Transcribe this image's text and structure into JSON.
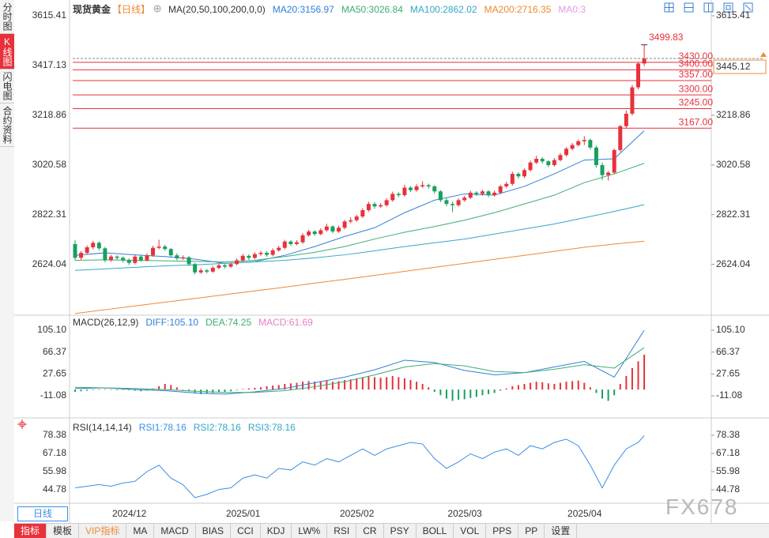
{
  "sidebar": {
    "tabs": [
      "分时图",
      "K线图",
      "闪电图",
      "合约资料"
    ]
  },
  "chart_data": [
    {
      "type": "candlestick",
      "title": "现货黄金",
      "period": "【日线】",
      "ma_label": "MA(20,50,100,200,0,0)",
      "up_color": "#e8313a",
      "down_color": "#17a05d",
      "ylim": [
        2424.3,
        3646.9
      ],
      "yticks": [
        3615.41,
        3417.13,
        3218.86,
        3020.58,
        2822.31,
        2624.04
      ],
      "categories": [
        null,
        null,
        null,
        null,
        null,
        null,
        null,
        null,
        "2024/12",
        null,
        null,
        null,
        null,
        null,
        null,
        null,
        null,
        null,
        null,
        null,
        null,
        null,
        null,
        null,
        null,
        null,
        null,
        "2025/01",
        null,
        null,
        null,
        null,
        null,
        null,
        null,
        null,
        null,
        null,
        null,
        null,
        null,
        null,
        null,
        null,
        null,
        null,
        "2025/02",
        null,
        null,
        null,
        null,
        null,
        null,
        null,
        null,
        null,
        null,
        null,
        null,
        null,
        null,
        null,
        null,
        null,
        "2025/03",
        null,
        null,
        null,
        null,
        null,
        null,
        null,
        null,
        null,
        null,
        null,
        null,
        null,
        null,
        null,
        null,
        null,
        null,
        null,
        "2025/04",
        null,
        null,
        null,
        null,
        null,
        null,
        null,
        null,
        null,
        null
      ],
      "ohlc": [
        [
          2705,
          2720,
          2640,
          2650
        ],
        [
          2650,
          2678,
          2642,
          2670
        ],
        [
          2670,
          2700,
          2662,
          2692
        ],
        [
          2692,
          2718,
          2684,
          2710
        ],
        [
          2710,
          2716,
          2680,
          2688
        ],
        [
          2688,
          2694,
          2632,
          2640
        ],
        [
          2640,
          2662,
          2634,
          2655
        ],
        [
          2655,
          2660,
          2642,
          2650
        ],
        [
          2650,
          2656,
          2632,
          2640
        ],
        [
          2640,
          2648,
          2622,
          2630
        ],
        [
          2630,
          2662,
          2624,
          2655
        ],
        [
          2655,
          2660,
          2634,
          2640
        ],
        [
          2640,
          2668,
          2636,
          2660
        ],
        [
          2660,
          2698,
          2654,
          2690
        ],
        [
          2690,
          2722,
          2684,
          2695
        ],
        [
          2695,
          2702,
          2678,
          2685
        ],
        [
          2685,
          2690,
          2652,
          2660
        ],
        [
          2660,
          2668,
          2640,
          2648
        ],
        [
          2648,
          2660,
          2642,
          2652
        ],
        [
          2652,
          2658,
          2618,
          2625
        ],
        [
          2625,
          2630,
          2584,
          2592
        ],
        [
          2592,
          2608,
          2586,
          2600
        ],
        [
          2600,
          2606,
          2588,
          2595
        ],
        [
          2595,
          2618,
          2590,
          2610
        ],
        [
          2610,
          2628,
          2604,
          2620
        ],
        [
          2620,
          2626,
          2608,
          2615
        ],
        [
          2615,
          2632,
          2610,
          2625
        ],
        [
          2625,
          2648,
          2620,
          2640
        ],
        [
          2640,
          2666,
          2634,
          2658
        ],
        [
          2658,
          2664,
          2642,
          2650
        ],
        [
          2650,
          2672,
          2644,
          2665
        ],
        [
          2665,
          2678,
          2658,
          2670
        ],
        [
          2670,
          2676,
          2654,
          2662
        ],
        [
          2662,
          2688,
          2656,
          2680
        ],
        [
          2680,
          2698,
          2674,
          2690
        ],
        [
          2690,
          2722,
          2684,
          2715
        ],
        [
          2715,
          2720,
          2698,
          2705
        ],
        [
          2705,
          2720,
          2700,
          2712
        ],
        [
          2712,
          2748,
          2706,
          2740
        ],
        [
          2740,
          2762,
          2734,
          2755
        ],
        [
          2755,
          2760,
          2738,
          2745
        ],
        [
          2745,
          2768,
          2740,
          2760
        ],
        [
          2760,
          2786,
          2754,
          2775
        ],
        [
          2775,
          2780,
          2748,
          2755
        ],
        [
          2755,
          2778,
          2750,
          2770
        ],
        [
          2770,
          2802,
          2764,
          2795
        ],
        [
          2795,
          2812,
          2788,
          2800
        ],
        [
          2800,
          2822,
          2794,
          2815
        ],
        [
          2815,
          2848,
          2808,
          2840
        ],
        [
          2840,
          2874,
          2834,
          2865
        ],
        [
          2865,
          2872,
          2846,
          2855
        ],
        [
          2855,
          2868,
          2850,
          2860
        ],
        [
          2860,
          2888,
          2854,
          2880
        ],
        [
          2880,
          2914,
          2874,
          2905
        ],
        [
          2905,
          2912,
          2892,
          2900
        ],
        [
          2900,
          2942,
          2894,
          2930
        ],
        [
          2930,
          2936,
          2912,
          2920
        ],
        [
          2920,
          2944,
          2914,
          2935
        ],
        [
          2935,
          2956,
          2928,
          2940
        ],
        [
          2940,
          2946,
          2926,
          2935
        ],
        [
          2935,
          2940,
          2906,
          2915
        ],
        [
          2915,
          2920,
          2872,
          2880
        ],
        [
          2880,
          2888,
          2856,
          2865
        ],
        [
          2865,
          2874,
          2832,
          2860
        ],
        [
          2860,
          2888,
          2854,
          2880
        ],
        [
          2880,
          2898,
          2874,
          2890
        ],
        [
          2890,
          2918,
          2884,
          2910
        ],
        [
          2910,
          2916,
          2896,
          2905
        ],
        [
          2905,
          2922,
          2898,
          2915
        ],
        [
          2915,
          2920,
          2892,
          2900
        ],
        [
          2900,
          2918,
          2894,
          2910
        ],
        [
          2910,
          2942,
          2904,
          2935
        ],
        [
          2935,
          2954,
          2928,
          2945
        ],
        [
          2945,
          2994,
          2938,
          2985
        ],
        [
          2985,
          2992,
          2966,
          2975
        ],
        [
          2975,
          3006,
          2968,
          3000
        ],
        [
          3000,
          3038,
          2994,
          3030
        ],
        [
          3030,
          3057,
          3024,
          3045
        ],
        [
          3045,
          3052,
          3026,
          3035
        ],
        [
          3035,
          3040,
          3012,
          3020
        ],
        [
          3020,
          3048,
          3014,
          3040
        ],
        [
          3040,
          3068,
          3034,
          3060
        ],
        [
          3060,
          3092,
          3054,
          3085
        ],
        [
          3085,
          3108,
          3078,
          3100
        ],
        [
          3100,
          3122,
          3094,
          3115
        ],
        [
          3115,
          3135,
          3100,
          3120
        ],
        [
          3120,
          3126,
          3082,
          3090
        ],
        [
          3090,
          3098,
          3010,
          3020
        ],
        [
          3020,
          3030,
          2960,
          2980
        ],
        [
          2980,
          2996,
          2958,
          2990
        ],
        [
          2990,
          3086,
          2984,
          3080
        ],
        [
          3080,
          3180,
          3072,
          3175
        ],
        [
          3175,
          3238,
          3168,
          3225
        ],
        [
          3225,
          3340,
          3218,
          3330
        ],
        [
          3330,
          3430,
          3322,
          3425
        ],
        [
          3425,
          3499.83,
          3415,
          3445.12
        ]
      ],
      "ma": {
        "x": [
          0,
          5,
          10,
          15,
          20,
          25,
          30,
          35,
          40,
          45,
          50,
          55,
          60,
          65,
          70,
          75,
          80,
          85,
          90,
          95
        ],
        "series": [
          {
            "name": "MA20:3156.97",
            "color": "#2f7fd8",
            "values": [
              2660,
              2670,
              2662,
              2655,
              2645,
              2628,
              2635,
              2660,
              2695,
              2735,
              2770,
              2830,
              2880,
              2905,
              2900,
              2935,
              2985,
              3040,
              3045,
              3156.97
            ]
          },
          {
            "name": "MA50:3026.84",
            "color": "#3cae72",
            "values": [
              2640,
              2642,
              2640,
              2638,
              2636,
              2634,
              2640,
              2655,
              2672,
              2695,
              2725,
              2752,
              2775,
              2800,
              2830,
              2865,
              2900,
              2950,
              2985,
              3026.84
            ]
          },
          {
            "name": "MA100:2862.02",
            "color": "#33a6c9",
            "values": [
              2600,
              2606,
              2612,
              2618,
              2622,
              2628,
              2634,
              2640,
              2650,
              2662,
              2678,
              2695,
              2710,
              2725,
              2745,
              2765,
              2785,
              2810,
              2835,
              2862.02
            ]
          },
          {
            "name": "MA200:2716.35",
            "color": "#f0882f",
            "values": [
              2428,
              2443,
              2458,
              2473,
              2488,
              2503,
              2518,
              2533,
              2549,
              2564,
              2580,
              2596,
              2612,
              2628,
              2644,
              2660,
              2676,
              2692,
              2705,
              2716.35
            ]
          }
        ]
      },
      "ma_extra": {
        "name": "MA0:3",
        "color": "#e39ae6"
      },
      "levels": [
        {
          "value": 3430,
          "label": "3430.00"
        },
        {
          "value": 3400,
          "label": "3400.00"
        },
        {
          "value": 3357,
          "label": "3357.00"
        },
        {
          "value": 3300,
          "label": "3300.00"
        },
        {
          "value": 3245,
          "label": "3245.00"
        },
        {
          "value": 3167,
          "label": "3167.00"
        }
      ],
      "level_color": "#e8313a",
      "last_price": 3445.12
    },
    {
      "type": "macd",
      "title": "MACD(26,12,9)",
      "ylim": [
        -48.8,
        130.3
      ],
      "yticks": [
        {
          "value": 105.1,
          "label": "105.10"
        },
        66.37,
        27.65,
        -11.08
      ],
      "x": [
        0,
        5,
        10,
        15,
        20,
        25,
        30,
        35,
        40,
        45,
        50,
        55,
        60,
        65,
        70,
        75,
        80,
        85,
        90,
        95
      ],
      "series": [
        {
          "name": "DIFF:105.10",
          "color": "#2f7fd8",
          "values": [
            2,
            3,
            0,
            -2,
            -6,
            -8,
            -4,
            2,
            12,
            22,
            35,
            52,
            48,
            34,
            26,
            30,
            40,
            50,
            22,
            105.1
          ]
        },
        {
          "name": "DEA:74.25",
          "color": "#3cae72",
          "values": [
            4,
            3,
            2,
            0,
            -3,
            -5,
            -5,
            -2,
            5,
            14,
            26,
            40,
            46,
            42,
            32,
            30,
            36,
            44,
            38,
            74.25
          ]
        }
      ],
      "histogram": {
        "name": "MACD:61.69",
        "up_color": "#e8313a",
        "down_color": "#17a05d",
        "values": [
          -4,
          -3,
          -2,
          -1,
          0,
          1,
          0,
          -1,
          0,
          -1,
          -2,
          -3,
          -2,
          2,
          6,
          10,
          8,
          4,
          0,
          -3,
          -6,
          -8,
          -7,
          -6,
          -5,
          -4,
          -3,
          -1,
          1,
          2,
          3,
          4,
          6,
          7,
          8,
          10,
          11,
          12,
          14,
          15,
          14,
          15,
          16,
          14,
          15,
          17,
          18,
          20,
          22,
          24,
          22,
          21,
          22,
          24,
          22,
          20,
          17,
          14,
          10,
          4,
          -4,
          -10,
          -16,
          -20,
          -18,
          -17,
          -15,
          -13,
          -10,
          -8,
          -6,
          -2,
          2,
          6,
          8,
          10,
          12,
          14,
          13,
          11,
          10,
          12,
          14,
          15,
          16,
          12,
          4,
          -6,
          -16,
          -20,
          -10,
          10,
          24,
          38,
          50,
          61.69
        ]
      }
    },
    {
      "type": "line",
      "title": "RSI(14,14,14)",
      "ylim": [
        37.5,
        88.6
      ],
      "yticks": [
        78.38,
        67.18,
        55.98,
        44.78
      ],
      "x": [
        0,
        2,
        4,
        6,
        8,
        10,
        12,
        14,
        16,
        18,
        20,
        22,
        24,
        26,
        28,
        30,
        32,
        34,
        36,
        38,
        40,
        42,
        44,
        46,
        48,
        50,
        52,
        54,
        56,
        58,
        60,
        62,
        64,
        66,
        68,
        70,
        72,
        74,
        76,
        78,
        80,
        82,
        84,
        86,
        88,
        90,
        92,
        94,
        95
      ],
      "series": [
        {
          "name": "RSI1:78.16",
          "color": "#3a8ee6",
          "values": [
            46,
            47,
            48,
            47,
            49,
            50,
            56,
            60,
            52,
            48,
            40,
            42,
            45,
            46,
            52,
            54,
            52,
            58,
            57,
            62,
            60,
            64,
            62,
            66,
            70,
            66,
            70,
            72,
            74,
            73,
            64,
            58,
            62,
            67,
            64,
            68,
            70,
            66,
            72,
            70,
            74,
            76,
            72,
            60,
            46,
            60,
            70,
            74,
            78.16
          ]
        }
      ],
      "legend_extra": [
        {
          "name": "RSI2:78.16",
          "color": "#33a6c9"
        },
        {
          "name": "RSI3:78.16",
          "color": "#33a6c9"
        }
      ]
    }
  ],
  "period_box": "日线",
  "toolbar": {
    "tabs": [
      "指标",
      "模板",
      "VIP指标",
      "MA",
      "MACD",
      "BIAS",
      "CCI",
      "KDJ",
      "LW%",
      "RSI",
      "CR",
      "PSY",
      "BOLL",
      "VOL",
      "PPS",
      "PP",
      "设置"
    ]
  },
  "watermark": "FX678"
}
